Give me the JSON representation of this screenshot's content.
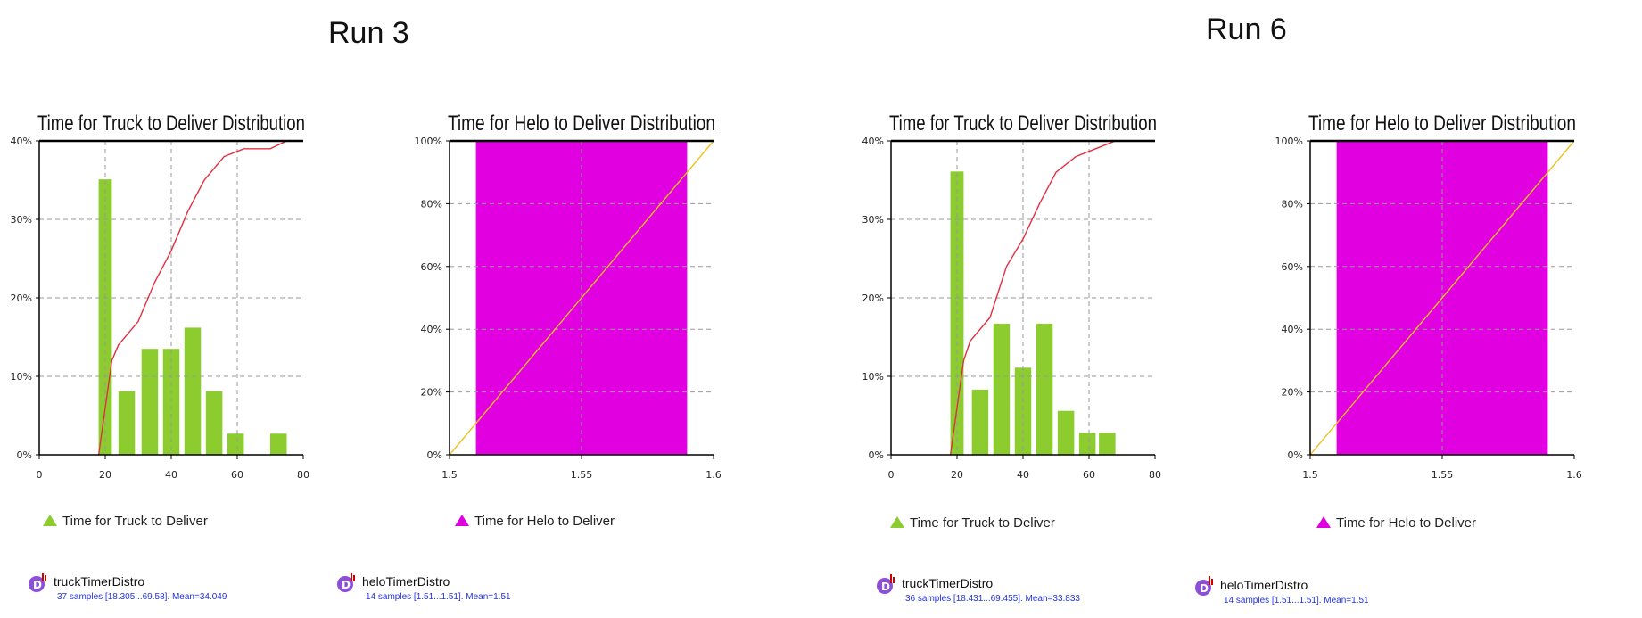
{
  "runs": [
    {
      "title": "Run 3"
    },
    {
      "title": "Run 6"
    }
  ],
  "legends": {
    "truck": "Time for Truck to Deliver",
    "helo": "Time for Helo to Deliver"
  },
  "distros": [
    {
      "name": "truckTimerDistro",
      "stats": "37 samples [18.305...69.58]. Mean=34.049"
    },
    {
      "name": "heloTimerDistro",
      "stats": "14 samples [1.51...1.51]. Mean=1.51"
    },
    {
      "name": "truckTimerDistro",
      "stats": "36 samples [18.431...69.455]. Mean=33.833"
    },
    {
      "name": "heloTimerDistro",
      "stats": "14 samples [1.51...1.51]. Mean=1.51"
    }
  ],
  "colors": {
    "truck_bar": "#8ccc2e",
    "helo_bar": "#e000e0",
    "truck_cdf": "#e03040",
    "helo_cdf": "#f0c020"
  },
  "chart_data": [
    {
      "type": "bar",
      "title": "Time for Truck to Deliver Distribution",
      "xlim": [
        0,
        80
      ],
      "ylim": [
        0,
        40
      ],
      "xticks": [
        "0",
        "20",
        "40",
        "60",
        "80"
      ],
      "yticks": [
        "0%",
        "10%",
        "20%",
        "30%",
        "40%"
      ],
      "series": [
        {
          "name": "Time for Truck to Deliver",
          "bins": [
            {
              "x0": 18,
              "x1": 22,
              "value": 35.1
            },
            {
              "x0": 24,
              "x1": 29,
              "value": 8.1
            },
            {
              "x0": 31,
              "x1": 36,
              "value": 13.5
            },
            {
              "x0": 37.5,
              "x1": 42.5,
              "value": 13.5
            },
            {
              "x0": 44,
              "x1": 49,
              "value": 16.2
            },
            {
              "x0": 50.5,
              "x1": 55.5,
              "value": 8.1
            },
            {
              "x0": 57,
              "x1": 62,
              "value": 2.7
            },
            {
              "x0": 70,
              "x1": 75,
              "value": 2.7
            }
          ]
        }
      ],
      "cdf": [
        [
          18,
          0
        ],
        [
          20,
          6
        ],
        [
          22,
          12
        ],
        [
          24,
          14
        ],
        [
          30,
          17
        ],
        [
          35,
          22
        ],
        [
          40,
          26
        ],
        [
          45,
          31
        ],
        [
          50,
          35
        ],
        [
          56,
          38
        ],
        [
          62,
          39
        ],
        [
          70,
          39
        ],
        [
          75,
          40
        ],
        [
          80,
          40
        ]
      ],
      "grid": true
    },
    {
      "type": "bar",
      "title": "Time for Helo to Deliver Distribution",
      "xlim": [
        1.5,
        1.6
      ],
      "ylim": [
        0,
        100
      ],
      "xticks": [
        "1.5",
        "1.55",
        "1.6"
      ],
      "yticks": [
        "0%",
        "20%",
        "40%",
        "60%",
        "80%",
        "100%"
      ],
      "series": [
        {
          "name": "Time for Helo to Deliver",
          "bins": [
            {
              "x0": 1.51,
              "x1": 1.59,
              "value": 100
            }
          ]
        }
      ],
      "cdf": [
        [
          1.5,
          0
        ],
        [
          1.6,
          100
        ]
      ],
      "grid": true
    },
    {
      "type": "bar",
      "title": "Time for Truck to Deliver Distribution",
      "xlim": [
        0,
        80
      ],
      "ylim": [
        0,
        40
      ],
      "xticks": [
        "0",
        "20",
        "40",
        "60",
        "80"
      ],
      "yticks": [
        "0%",
        "10%",
        "20%",
        "30%",
        "40%"
      ],
      "series": [
        {
          "name": "Time for Truck to Deliver",
          "bins": [
            {
              "x0": 18,
              "x1": 22,
              "value": 36.1
            },
            {
              "x0": 24.5,
              "x1": 29.5,
              "value": 8.3
            },
            {
              "x0": 31,
              "x1": 36,
              "value": 16.7
            },
            {
              "x0": 37.5,
              "x1": 42.5,
              "value": 11.1
            },
            {
              "x0": 44,
              "x1": 49,
              "value": 16.7
            },
            {
              "x0": 50.5,
              "x1": 55.5,
              "value": 5.6
            },
            {
              "x0": 57,
              "x1": 62,
              "value": 2.8
            },
            {
              "x0": 63,
              "x1": 68,
              "value": 2.8
            }
          ]
        }
      ],
      "cdf": [
        [
          18,
          0
        ],
        [
          20,
          6
        ],
        [
          22,
          12
        ],
        [
          24,
          14.5
        ],
        [
          30,
          17.5
        ],
        [
          35,
          24
        ],
        [
          40,
          27.5
        ],
        [
          45,
          32
        ],
        [
          50,
          36
        ],
        [
          56,
          38
        ],
        [
          62,
          39
        ],
        [
          68,
          40
        ],
        [
          80,
          40
        ]
      ],
      "grid": true
    },
    {
      "type": "bar",
      "title": "Time for Helo to Deliver Distribution",
      "xlim": [
        1.5,
        1.6
      ],
      "ylim": [
        0,
        100
      ],
      "xticks": [
        "1.5",
        "1.55",
        "1.6"
      ],
      "yticks": [
        "0%",
        "20%",
        "40%",
        "60%",
        "80%",
        "100%"
      ],
      "series": [
        {
          "name": "Time for Helo to Deliver",
          "bins": [
            {
              "x0": 1.51,
              "x1": 1.59,
              "value": 100
            }
          ]
        }
      ],
      "cdf": [
        [
          1.5,
          0
        ],
        [
          1.6,
          100
        ]
      ],
      "grid": true
    }
  ]
}
